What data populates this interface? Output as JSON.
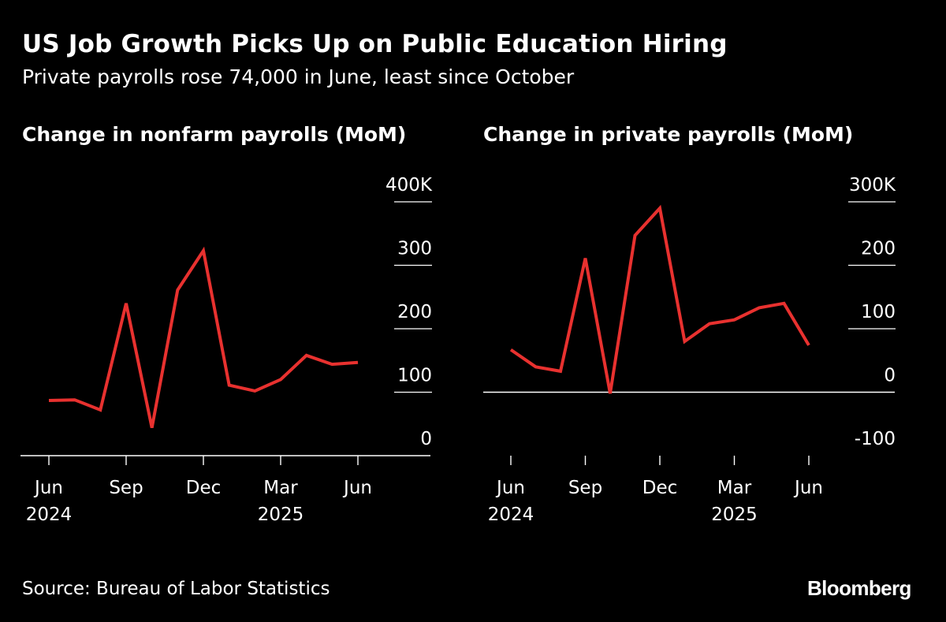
{
  "header": {
    "title": "US Job Growth Picks Up on Public Education Hiring",
    "subtitle": "Private payrolls rose 74,000 in June, least since October"
  },
  "footer": {
    "source": "Source: Bureau of Labor Statistics",
    "logo": "Bloomberg"
  },
  "colors": {
    "background": "#000000",
    "text": "#ffffff",
    "series": "#e8312f",
    "axis": "#ffffff"
  },
  "chart_data": [
    {
      "type": "line",
      "title": "Change in nonfarm payrolls (MoM)",
      "x": [
        "2024-06",
        "2024-07",
        "2024-08",
        "2024-09",
        "2024-10",
        "2024-11",
        "2024-12",
        "2025-01",
        "2025-02",
        "2025-03",
        "2025-04",
        "2025-05",
        "2025-06"
      ],
      "series": [
        {
          "values": [
            87,
            88,
            72,
            240,
            44,
            261,
            323,
            111,
            102,
            120,
            158,
            144,
            147
          ]
        }
      ],
      "ylim": [
        0,
        400
      ],
      "y_ticks": [
        {
          "value": 0,
          "label": "0"
        },
        {
          "value": 100,
          "label": "100"
        },
        {
          "value": 200,
          "label": "200"
        },
        {
          "value": 300,
          "label": "300"
        },
        {
          "value": 400,
          "label": "400K"
        }
      ],
      "x_ticks": [
        {
          "x": "2024-06",
          "label": "Jun",
          "year": "2024"
        },
        {
          "x": "2024-09",
          "label": "Sep",
          "year": ""
        },
        {
          "x": "2024-12",
          "label": "Dec",
          "year": ""
        },
        {
          "x": "2025-03",
          "label": "Mar",
          "year": "2025"
        },
        {
          "x": "2025-06",
          "label": "Jun",
          "year": ""
        }
      ],
      "grid": true,
      "y_axis_side": "right"
    },
    {
      "type": "line",
      "title": "Change in private payrolls (MoM)",
      "x": [
        "2024-06",
        "2024-07",
        "2024-08",
        "2024-09",
        "2024-10",
        "2024-11",
        "2024-12",
        "2025-01",
        "2025-02",
        "2025-03",
        "2025-04",
        "2025-05",
        "2025-06"
      ],
      "series": [
        {
          "values": [
            67,
            40,
            33,
            211,
            -2,
            247,
            290,
            80,
            108,
            114,
            133,
            140,
            74
          ]
        }
      ],
      "ylim": [
        -100,
        300
      ],
      "y_ticks": [
        {
          "value": -100,
          "label": "-100"
        },
        {
          "value": 0,
          "label": "0"
        },
        {
          "value": 100,
          "label": "100"
        },
        {
          "value": 200,
          "label": "200"
        },
        {
          "value": 300,
          "label": "300K"
        }
      ],
      "x_ticks": [
        {
          "x": "2024-06",
          "label": "Jun",
          "year": "2024"
        },
        {
          "x": "2024-09",
          "label": "Sep",
          "year": ""
        },
        {
          "x": "2024-12",
          "label": "Dec",
          "year": ""
        },
        {
          "x": "2025-03",
          "label": "Mar",
          "year": "2025"
        },
        {
          "x": "2025-06",
          "label": "Jun",
          "year": ""
        }
      ],
      "grid": true,
      "y_axis_side": "right"
    }
  ]
}
